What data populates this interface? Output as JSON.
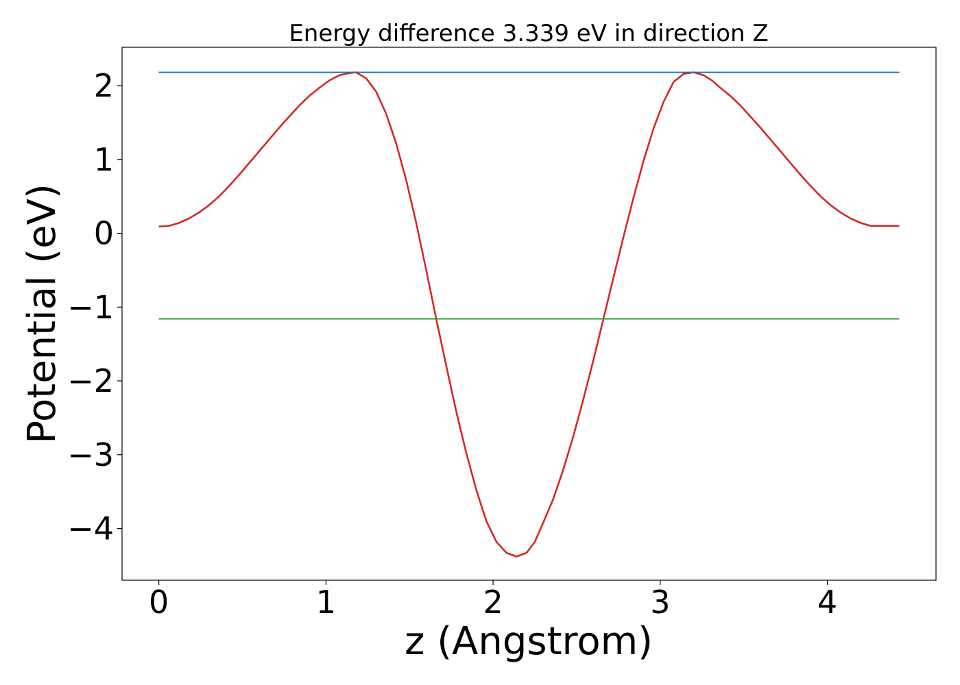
{
  "chart_data": {
    "type": "line",
    "title": "Energy difference 3.339 eV in direction Z",
    "xlabel": "z (Angstrom)",
    "ylabel": "Potential (eV)",
    "xlim": [
      -0.22,
      4.65
    ],
    "ylim": [
      -4.7,
      2.52
    ],
    "xticks": [
      0,
      1,
      2,
      3,
      4
    ],
    "yticks": [
      2,
      1,
      0,
      -1,
      -2,
      -3,
      -4
    ],
    "grid": false,
    "legend": "none",
    "series": [
      {
        "color": "#d62728",
        "x": [
          0.0,
          0.06,
          0.12,
          0.18,
          0.24,
          0.3,
          0.36,
          0.42,
          0.48,
          0.54,
          0.6,
          0.66,
          0.72,
          0.78,
          0.84,
          0.9,
          0.96,
          1.02,
          1.08,
          1.14,
          1.18,
          1.24,
          1.3,
          1.36,
          1.42,
          1.48,
          1.54,
          1.6,
          1.66,
          1.72,
          1.78,
          1.84,
          1.9,
          1.96,
          2.02,
          2.08,
          2.14,
          2.2,
          2.25,
          2.3,
          2.36,
          2.42,
          2.48,
          2.54,
          2.6,
          2.66,
          2.72,
          2.78,
          2.84,
          2.9,
          2.96,
          3.02,
          3.08,
          3.14,
          3.2,
          3.26,
          3.31,
          3.36,
          3.42,
          3.48,
          3.54,
          3.6,
          3.66,
          3.72,
          3.78,
          3.84,
          3.9,
          3.96,
          4.02,
          4.08,
          4.14,
          4.2,
          4.26,
          4.32,
          4.38,
          4.43
        ],
        "y": [
          0.09,
          0.1,
          0.14,
          0.2,
          0.28,
          0.38,
          0.5,
          0.64,
          0.79,
          0.95,
          1.11,
          1.27,
          1.43,
          1.58,
          1.73,
          1.86,
          1.97,
          2.07,
          2.14,
          2.17,
          2.18,
          2.1,
          1.92,
          1.62,
          1.22,
          0.72,
          0.14,
          -0.5,
          -1.16,
          -1.8,
          -2.42,
          -2.98,
          -3.48,
          -3.9,
          -4.18,
          -4.33,
          -4.38,
          -4.33,
          -4.18,
          -3.92,
          -3.6,
          -3.2,
          -2.75,
          -2.25,
          -1.72,
          -1.16,
          -0.6,
          -0.05,
          0.48,
          0.98,
          1.42,
          1.78,
          2.05,
          2.16,
          2.18,
          2.14,
          2.07,
          1.97,
          1.86,
          1.73,
          1.58,
          1.43,
          1.27,
          1.11,
          0.95,
          0.79,
          0.64,
          0.5,
          0.38,
          0.28,
          0.2,
          0.14,
          0.1,
          0.1,
          0.1,
          0.1
        ]
      },
      {
        "color": "#1f77b4",
        "x": [
          0.0,
          4.43
        ],
        "y": [
          2.18,
          2.18
        ]
      },
      {
        "color": "#2ca02c",
        "x": [
          0.0,
          4.43
        ],
        "y": [
          -1.16,
          -1.16
        ]
      }
    ]
  }
}
